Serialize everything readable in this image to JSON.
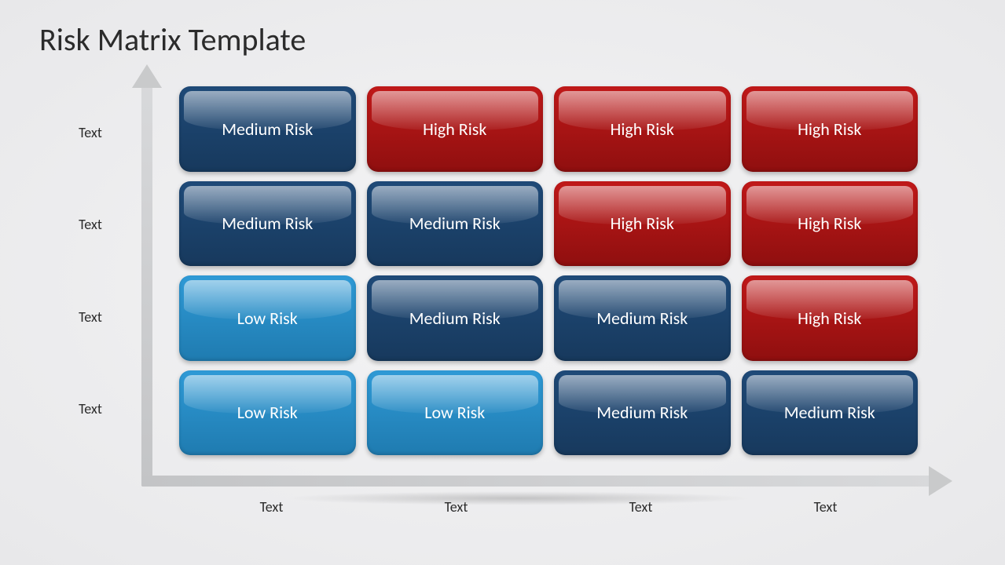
{
  "title": "Risk Matrix Template",
  "matrix": {
    "type": "heatmap",
    "rows": 4,
    "cols": 4,
    "cell_border_radius": 14,
    "cell_font_size": 22,
    "cell_text_color": "#ffffff",
    "gloss_highlight_opacity": 0.55,
    "y_labels": [
      "Text",
      "Text",
      "Text",
      "Text"
    ],
    "x_labels": [
      "Text",
      "Text",
      "Text",
      "Text"
    ],
    "axis_label_fontsize": 18,
    "axis_label_color": "#2b2b2b",
    "axis_line_color": "#c8c9cb",
    "axis_line_width": 14,
    "background_color": "#eeeef0",
    "risk_colors": {
      "low": {
        "base": "#2f9ad6",
        "dark": "#1f7bb0"
      },
      "medium": {
        "base": "#1f4a78",
        "dark": "#17395d"
      },
      "high": {
        "base": "#c01919",
        "dark": "#8f0f0f"
      }
    },
    "risk_labels": {
      "low": "Low Risk",
      "medium": "Medium Risk",
      "high": "High Risk"
    },
    "cells": [
      [
        "medium",
        "high",
        "high",
        "high"
      ],
      [
        "medium",
        "medium",
        "high",
        "high"
      ],
      [
        "low",
        "medium",
        "medium",
        "high"
      ],
      [
        "low",
        "low",
        "medium",
        "medium"
      ]
    ]
  }
}
